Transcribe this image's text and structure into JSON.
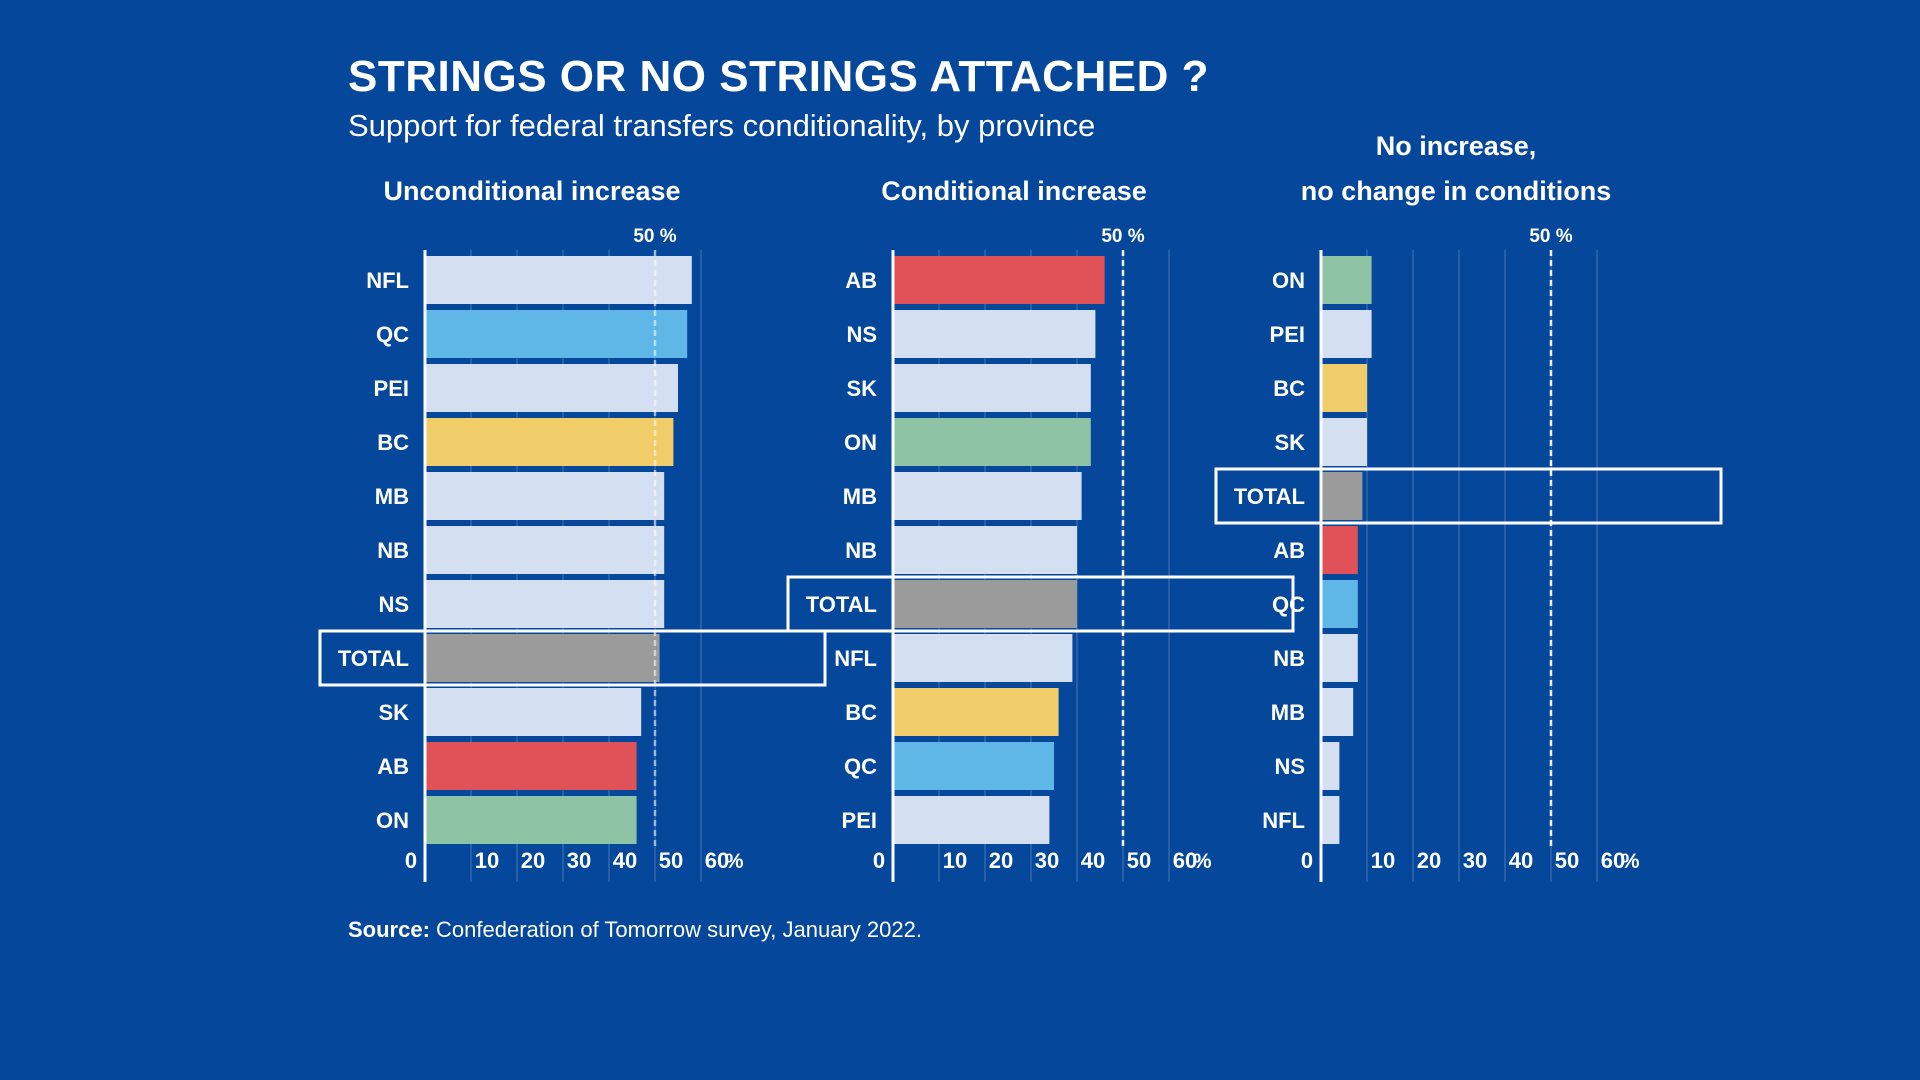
{
  "title": "STRINGS OR NO STRINGS ATTACHED ?",
  "subtitle": "Support for federal transfers conditionality, by province",
  "source": {
    "label": "Source:",
    "text": " Confederation of Tomorrow survey, January 2022."
  },
  "colors": {
    "background": "#05479a",
    "default_bar": "#d4dff1",
    "ON": "#8fc3a6",
    "BC": "#f1cd6a",
    "QC": "#5eb7e6",
    "AB": "#e05257",
    "TOTAL": "#9b9b9b",
    "text": "#ffffff"
  },
  "chart_data": [
    {
      "type": "bar",
      "orientation": "horizontal",
      "title_lines": [
        "Unconditional increase"
      ],
      "reference_label": "50 %",
      "reference_value": 50,
      "ticks": [
        0,
        10,
        20,
        30,
        40,
        50,
        60
      ],
      "unit_label": "%",
      "xlim": [
        0,
        62
      ],
      "highlight": "TOTAL",
      "categories": [
        "NFL",
        "QC",
        "PEI",
        "BC",
        "MB",
        "NB",
        "NS",
        "TOTAL",
        "SK",
        "AB",
        "ON"
      ],
      "values": [
        58,
        57,
        55,
        54,
        52,
        52,
        52,
        51,
        47,
        46,
        46
      ]
    },
    {
      "type": "bar",
      "orientation": "horizontal",
      "title_lines": [
        "Conditional increase"
      ],
      "reference_label": "50 %",
      "reference_value": 50,
      "ticks": [
        0,
        10,
        20,
        30,
        40,
        50,
        60
      ],
      "unit_label": "%",
      "xlim": [
        0,
        62
      ],
      "highlight": "TOTAL",
      "categories": [
        "AB",
        "NS",
        "SK",
        "ON",
        "MB",
        "NB",
        "TOTAL",
        "NFL",
        "BC",
        "QC",
        "PEI"
      ],
      "values": [
        46,
        44,
        43,
        43,
        41,
        40,
        40,
        39,
        36,
        35,
        34
      ]
    },
    {
      "type": "bar",
      "orientation": "horizontal",
      "title_lines": [
        "No increase,",
        "no change in conditions"
      ],
      "reference_label": "50 %",
      "reference_value": 50,
      "ticks": [
        0,
        10,
        20,
        30,
        40,
        50,
        60
      ],
      "unit_label": "%",
      "xlim": [
        0,
        62
      ],
      "highlight": "TOTAL",
      "categories": [
        "ON",
        "PEI",
        "BC",
        "SK",
        "TOTAL",
        "AB",
        "QC",
        "NB",
        "MB",
        "NS",
        "NFL"
      ],
      "values": [
        11,
        11,
        10,
        10,
        9,
        8,
        8,
        8,
        7,
        4,
        4
      ]
    }
  ]
}
